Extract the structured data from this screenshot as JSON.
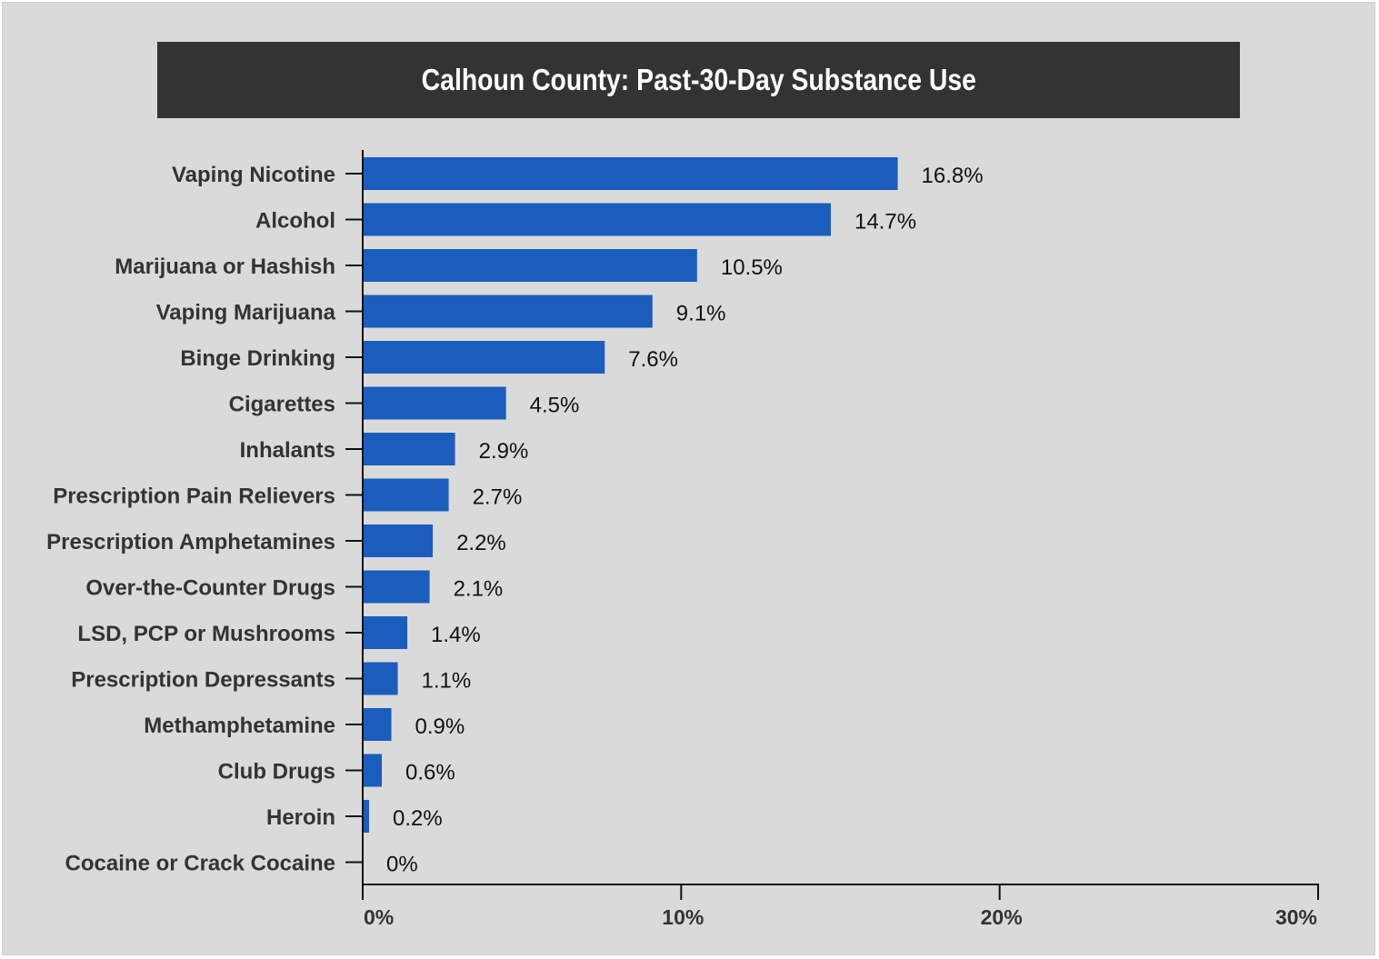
{
  "chart_data": {
    "type": "bar",
    "orientation": "horizontal",
    "title": "Calhoun County: Past-30-Day Substance Use",
    "categories": [
      "Vaping Nicotine",
      "Alcohol",
      "Marijuana or Hashish",
      "Vaping Marijuana",
      "Binge Drinking",
      "Cigarettes",
      "Inhalants",
      "Prescription Pain Relievers",
      "Prescription Amphetamines",
      "Over-the-Counter Drugs",
      "LSD, PCP or Mushrooms",
      "Prescription Depressants",
      "Methamphetamine",
      "Club Drugs",
      "Heroin",
      "Cocaine or Crack Cocaine"
    ],
    "values": [
      16.8,
      14.7,
      10.5,
      9.1,
      7.6,
      4.5,
      2.9,
      2.7,
      2.2,
      2.1,
      1.4,
      1.1,
      0.9,
      0.6,
      0.2,
      0
    ],
    "data_labels": [
      "16.8%",
      "14.7%",
      "10.5%",
      "9.1%",
      "7.6%",
      "4.5%",
      "2.9%",
      "2.7%",
      "2.2%",
      "2.1%",
      "1.4%",
      "1.1%",
      "0.9%",
      "0.6%",
      "0.2%",
      "0%"
    ],
    "xlim": [
      0,
      30
    ],
    "ticks": [
      0,
      10,
      20,
      30
    ],
    "tick_labels": [
      "0%",
      "10%",
      "20%",
      "30%"
    ],
    "xlabel": "",
    "ylabel": "",
    "grid": false,
    "legend": "none",
    "colors": {
      "bar": "#1a5dbd",
      "title_background": "#333333",
      "title_text": "#ffffff",
      "background": "#dadada",
      "axis": "#111111",
      "category_text": "#333333"
    }
  }
}
